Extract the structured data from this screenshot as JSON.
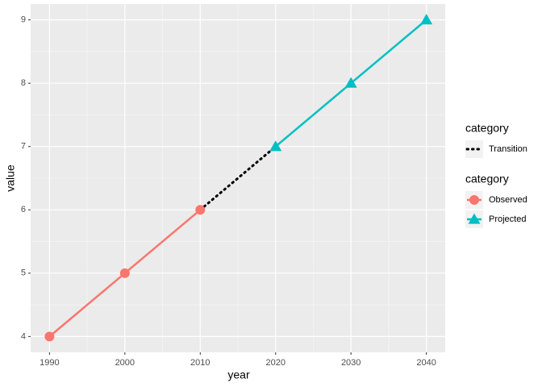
{
  "chart_data": {
    "type": "line",
    "x_label": "year",
    "y_label": "value",
    "xlim": [
      1987.5,
      2042.5
    ],
    "xticks": [
      1990,
      2000,
      2010,
      2020,
      2030,
      2040
    ],
    "ylim": [
      3.75,
      9.25
    ],
    "yticks": [
      4,
      5,
      6,
      7,
      8,
      9
    ],
    "grid": true,
    "legend_position": "right",
    "legend_titles": [
      "category",
      "category"
    ],
    "series": [
      {
        "name": "Transition",
        "color": "#000000",
        "linestyle": "dotted",
        "marker": "none",
        "legend": 0,
        "x": [
          2010,
          2020
        ],
        "values": [
          6,
          7
        ]
      },
      {
        "name": "Observed",
        "color": "#F8766D",
        "linestyle": "solid",
        "marker": "circle",
        "legend": 1,
        "x": [
          1990,
          2000,
          2010
        ],
        "values": [
          4,
          5,
          6
        ]
      },
      {
        "name": "Projected",
        "color": "#00BFC4",
        "linestyle": "solid",
        "marker": "triangle",
        "legend": 1,
        "x": [
          2020,
          2030,
          2040
        ],
        "values": [
          7,
          8,
          9
        ]
      }
    ]
  }
}
